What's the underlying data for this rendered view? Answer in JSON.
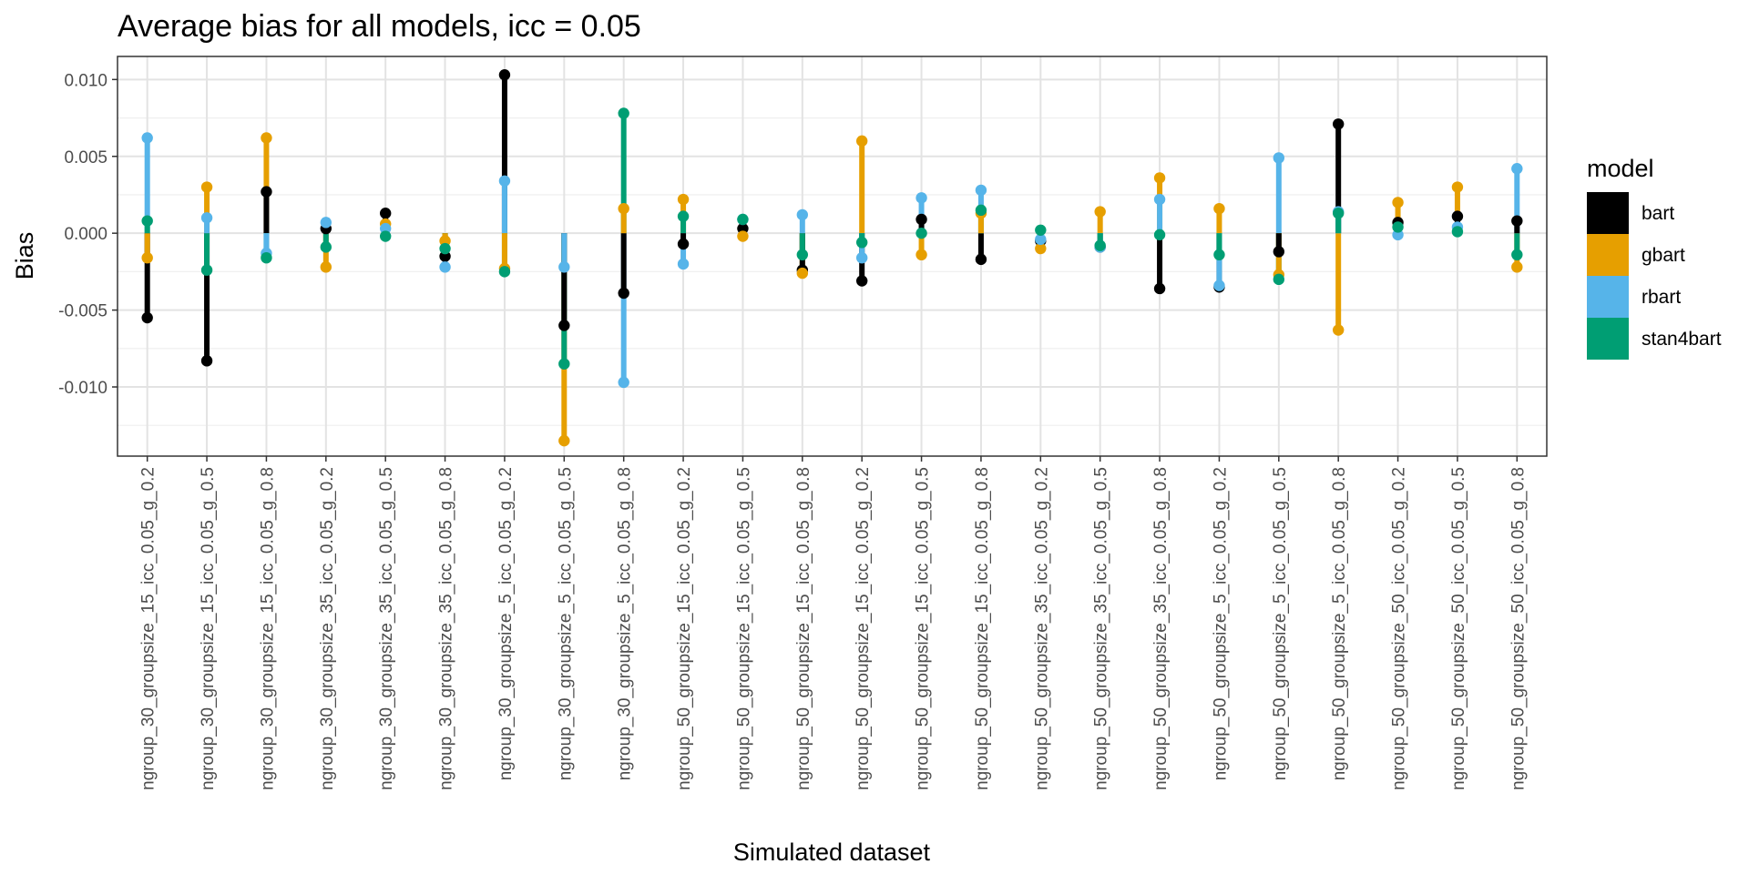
{
  "chart_data": {
    "type": "scatter",
    "subtype": "dot-and-segment",
    "title": "Average bias for all models, icc = 0.05",
    "xlabel": "Simulated dataset",
    "ylabel": "Bias",
    "ylim": [
      -0.0145,
      0.0115
    ],
    "y_ticks": [
      -0.01,
      -0.005,
      0.0,
      0.005,
      0.01
    ],
    "y_tick_labels": [
      "-0.010",
      "-0.005",
      "0.000",
      "0.005",
      "0.010"
    ],
    "grid": true,
    "legend": {
      "title": "model",
      "position": "right"
    },
    "categories": [
      "ngroup_30_groupsize_15_icc_0.05_g_0.2",
      "ngroup_30_groupsize_15_icc_0.05_g_0.5",
      "ngroup_30_groupsize_15_icc_0.05_g_0.8",
      "ngroup_30_groupsize_35_icc_0.05_g_0.2",
      "ngroup_30_groupsize_35_icc_0.05_g_0.5",
      "ngroup_30_groupsize_35_icc_0.05_g_0.8",
      "ngroup_30_groupsize_5_icc_0.05_g_0.2",
      "ngroup_30_groupsize_5_icc_0.05_g_0.5",
      "ngroup_30_groupsize_5_icc_0.05_g_0.8",
      "ngroup_50_groupsize_15_icc_0.05_g_0.2",
      "ngroup_50_groupsize_15_icc_0.05_g_0.5",
      "ngroup_50_groupsize_15_icc_0.05_g_0.8",
      "ngroup_50_groupsize_15_icc_0.05_g_0.2",
      "ngroup_50_groupsize_15_icc_0.05_g_0.5",
      "ngroup_50_groupsize_15_icc_0.05_g_0.8",
      "ngroup_50_groupsize_35_icc_0.05_g_0.2",
      "ngroup_50_groupsize_35_icc_0.05_g_0.5",
      "ngroup_50_groupsize_35_icc_0.05_g_0.8",
      "ngroup_50_groupsize_5_icc_0.05_g_0.2",
      "ngroup_50_groupsize_5_icc_0.05_g_0.5",
      "ngroup_50_groupsize_5_icc_0.05_g_0.8",
      "ngroup_50_groupsize_50_icc_0.05_g_0.2",
      "ngroup_50_groupsize_50_icc_0.05_g_0.5",
      "ngroup_50_groupsize_50_icc_0.05_g_0.8"
    ],
    "series": [
      {
        "name": "bart",
        "color": "#000000",
        "values": [
          -0.0055,
          -0.0083,
          0.0027,
          0.0003,
          0.0013,
          -0.0015,
          0.0103,
          -0.006,
          -0.0039,
          -0.0007,
          0.0003,
          -0.0024,
          -0.0031,
          0.0009,
          -0.0017,
          -0.0005,
          -0.0009,
          -0.0036,
          -0.0035,
          -0.0012,
          0.0071,
          0.0007,
          0.0011,
          0.0008
        ]
      },
      {
        "name": "gbart",
        "color": "#E69F00",
        "values": [
          -0.0016,
          0.003,
          0.0062,
          -0.0022,
          0.0006,
          -0.0005,
          -0.0023,
          -0.0135,
          0.0016,
          0.0022,
          -0.0002,
          -0.0026,
          0.006,
          -0.0014,
          0.0013,
          -0.001,
          0.0014,
          0.0036,
          0.0016,
          -0.0027,
          -0.0063,
          0.002,
          0.003,
          -0.0022
        ]
      },
      {
        "name": "rbart",
        "color": "#56B4E9",
        "values": [
          0.0062,
          0.001,
          -0.0013,
          0.0007,
          0.0003,
          -0.0022,
          0.0034,
          -0.0022,
          -0.0097,
          -0.002,
          0.0009,
          0.0012,
          -0.0016,
          0.0023,
          0.0028,
          -0.0004,
          -0.0009,
          0.0022,
          -0.0034,
          0.0049,
          0.0014,
          -0.0001,
          0.0004,
          0.0042
        ]
      },
      {
        "name": "stan4bart",
        "color": "#009E73",
        "values": [
          0.0008,
          -0.0024,
          -0.0016,
          -0.0009,
          -0.0002,
          -0.001,
          -0.0025,
          -0.0085,
          0.0078,
          0.0011,
          0.0009,
          -0.0014,
          -0.0006,
          0.0,
          0.0015,
          0.0002,
          -0.0008,
          -0.0001,
          -0.0014,
          -0.003,
          0.0013,
          0.0004,
          0.0001,
          -0.0014
        ]
      }
    ]
  }
}
